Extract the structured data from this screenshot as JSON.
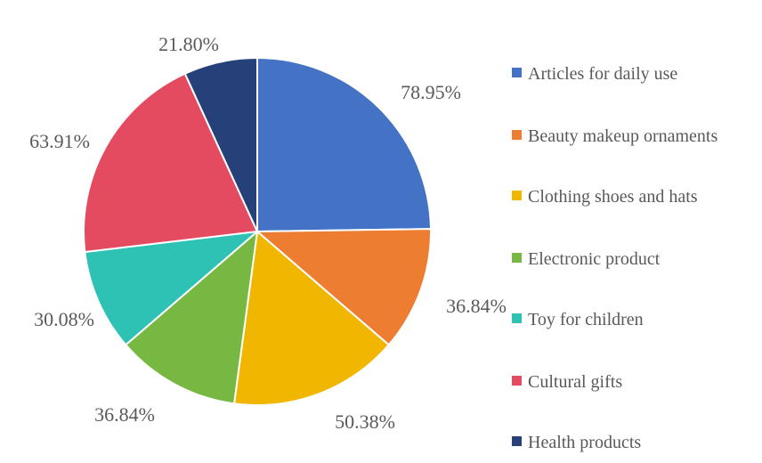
{
  "chart_data": {
    "type": "pie",
    "title": "",
    "categories": [
      "Articles for daily use",
      "Beauty makeup ornaments",
      "Clothing shoes and hats",
      "Electronic product",
      "Toy for children",
      "Cultural gifts",
      "Health products"
    ],
    "values": [
      78.95,
      36.84,
      50.38,
      36.84,
      30.08,
      63.91,
      21.8
    ],
    "labels": [
      "78.95%",
      "36.84%",
      "50.38%",
      "36.84%",
      "30.08%",
      "63.91%",
      "21.80%"
    ],
    "colors": [
      "#4472C4",
      "#ED7D31",
      "#F1B700",
      "#77B842",
      "#2EC2B4",
      "#E44B60",
      "#264179"
    ],
    "legend_position": "right",
    "start_angle": "12 o'clock",
    "direction": "clockwise"
  }
}
